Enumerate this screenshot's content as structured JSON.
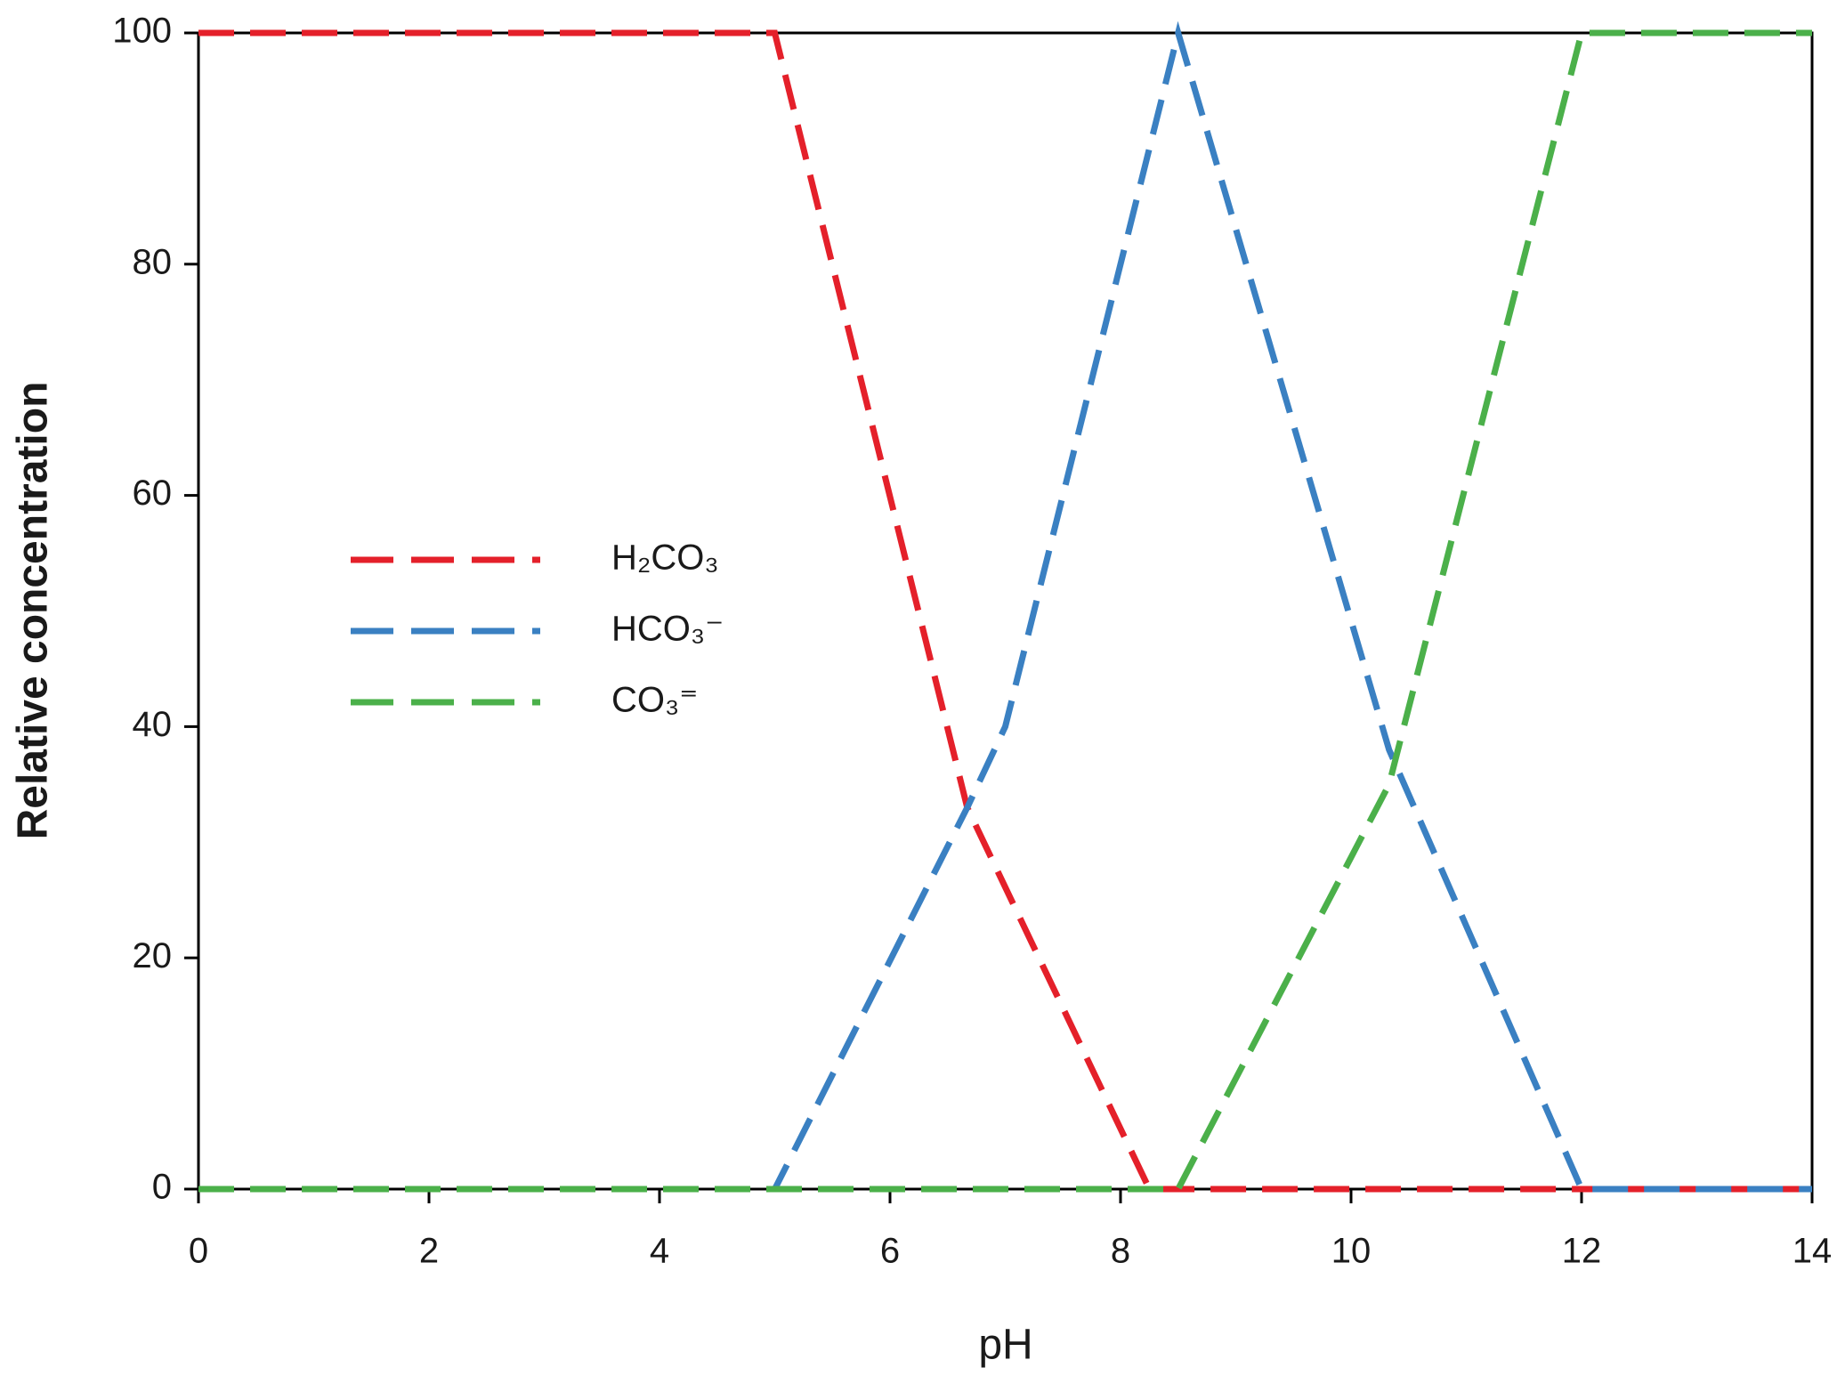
{
  "chart_data": {
    "type": "line",
    "x_label": "pH",
    "y_label": "Relative concentration",
    "xlim": [
      0,
      14
    ],
    "xticks": [
      0,
      2,
      4,
      6,
      8,
      10,
      12,
      14
    ],
    "ylim": [
      0,
      100
    ],
    "yticks": [
      0,
      20,
      40,
      60,
      80,
      100
    ],
    "grid": false,
    "legend": "left",
    "series": [
      {
        "name": "H₂CO₃",
        "color": "#e4202a",
        "x": [
          0,
          5,
          6.67,
          8.25,
          14
        ],
        "values": [
          100,
          100,
          33,
          0,
          0
        ]
      },
      {
        "name": "HCO₃⁻",
        "color": "#3a80c2",
        "x": [
          0,
          5,
          6.67,
          7,
          8.5,
          10.33,
          12,
          14
        ],
        "values": [
          0,
          0,
          33,
          40,
          100,
          38,
          0,
          0
        ]
      },
      {
        "name": "CO₃⁼",
        "color": "#4bb04a",
        "x": [
          0,
          8.5,
          10.33,
          12,
          14
        ],
        "values": [
          0,
          0,
          35,
          100,
          100
        ]
      }
    ]
  }
}
